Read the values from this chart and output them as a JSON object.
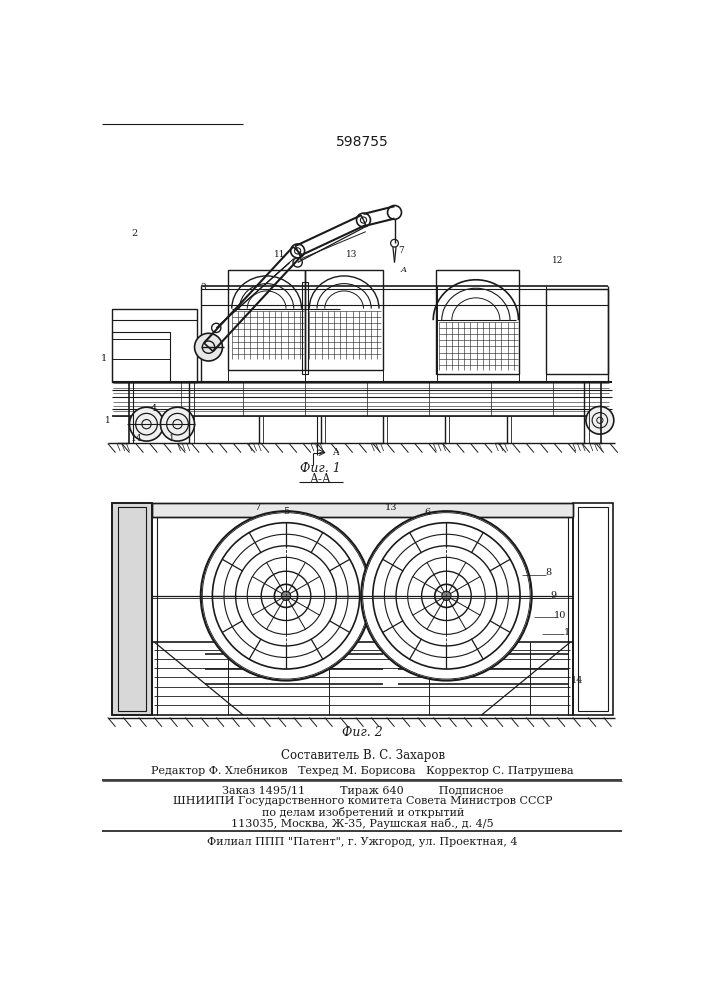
{
  "patent_number": "598755",
  "fig1_label": "Фиг. 1",
  "fig2_label": "Фиг. 2",
  "section_label": "А-А",
  "author_line": "Составитель В. С. Захаров",
  "editor_line": "Редактор Ф. Хлебников   Техред М. Борисова   Корректор С. Патрушева",
  "order_line": "Заказ 1495/11          Тираж 640          Подписное",
  "org_line1": "ШНИИПИ Государственного комитета Совета Министров СССР",
  "org_line2": "по делам изобретений и открытий",
  "address_line": "113035, Москва, Ж-35, Раушская наб., д. 4/5",
  "branch_line": "Филиал ППП \"Патент\", г. Ужгород, ул. Проектная, 4",
  "bg_color": "#ffffff",
  "line_color": "#1a1a1a",
  "text_color": "#1a1a1a"
}
